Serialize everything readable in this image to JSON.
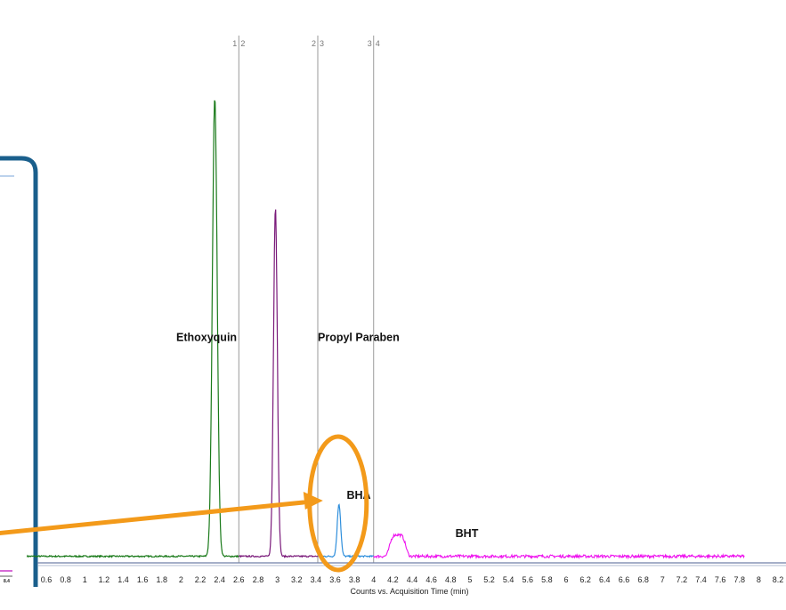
{
  "chart_data": {
    "type": "line",
    "title": "",
    "xlabel": "Counts vs. Acquisition Time (min)",
    "ylabel": "",
    "xlim": [
      0.4,
      8.3
    ],
    "ylim": [
      0,
      1.0
    ],
    "x_ticks": [
      "0.6",
      "0.8",
      "1",
      "1.2",
      "1.4",
      "1.6",
      "1.8",
      "2",
      "2.2",
      "2.4",
      "2.6",
      "2.8",
      "3",
      "3.2",
      "3.4",
      "3.6",
      "3.8",
      "4",
      "4.2",
      "4.4",
      "4.6",
      "4.8",
      "5",
      "5.2",
      "5.4",
      "5.6",
      "5.8",
      "6",
      "6.2",
      "6.4",
      "6.6",
      "6.8",
      "7",
      "7.2",
      "7.4",
      "7.6",
      "7.8",
      "8",
      "8.2"
    ],
    "segment_markers": [
      {
        "x": 2.6,
        "label_left": "1",
        "label_right": "2"
      },
      {
        "x": 3.42,
        "label_left": "2",
        "label_right": "3"
      },
      {
        "x": 4.0,
        "label_left": "3",
        "label_right": "4"
      }
    ],
    "series": [
      {
        "color": "#1a7a1a",
        "x_range": [
          0.4,
          2.6
        ],
        "baseline": 0.01,
        "peak": {
          "x": 2.35,
          "height": 0.96,
          "width": 0.025
        }
      },
      {
        "color": "#7a1a7a",
        "x_range": [
          2.6,
          3.42
        ],
        "baseline": 0.01,
        "peak": {
          "x": 2.98,
          "height": 0.73,
          "width": 0.02
        }
      },
      {
        "color": "#2f8fdc",
        "x_range": [
          3.42,
          4.0
        ],
        "baseline": 0.01,
        "peak": {
          "x": 3.64,
          "height": 0.11,
          "width": 0.018
        }
      },
      {
        "color": "#ee11ee",
        "x_range": [
          4.0,
          7.85
        ],
        "baseline": 0.01,
        "peak": {
          "x": 4.25,
          "height": 0.045,
          "width": 0.07
        }
      }
    ],
    "annotations": [
      {
        "text": "Ethoxyquin",
        "x": 1.95,
        "y": 0.46
      },
      {
        "text": "Propyl Paraben",
        "x": 3.42,
        "y": 0.46
      },
      {
        "text": "BHA",
        "x": 3.72,
        "y": 0.13
      },
      {
        "text": "BHT",
        "x": 4.85,
        "y": 0.05
      }
    ],
    "highlight": {
      "type": "ellipse",
      "target": "BHA",
      "color": "#f39a1a"
    },
    "arrow": {
      "target": "BHA",
      "color": "#f39a1a"
    },
    "inset_tick_label": "8.4",
    "inset_border_color": "#1a5f8c"
  }
}
